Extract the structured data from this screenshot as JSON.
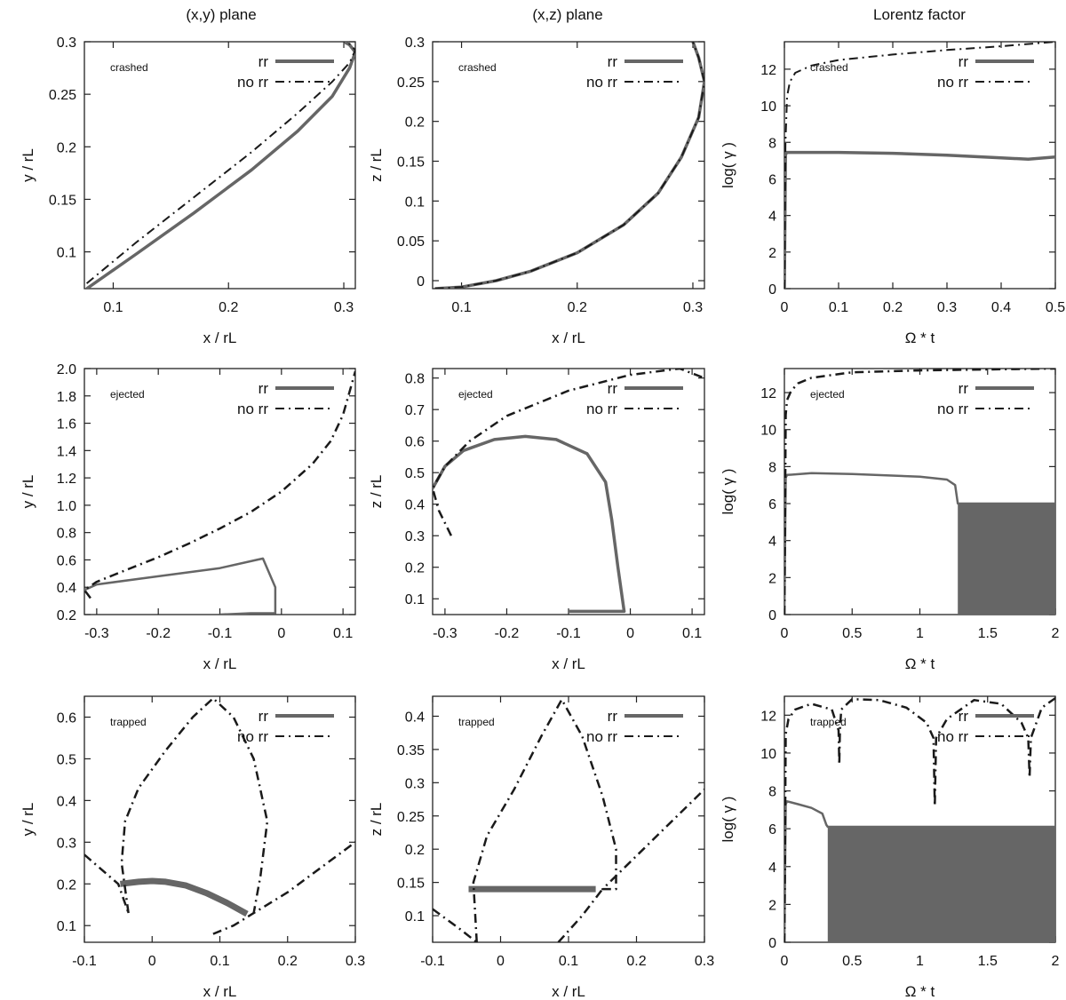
{
  "figure": {
    "column_titles": [
      "(x,y) plane",
      "(x,z) plane",
      "Lorentz factor"
    ],
    "line_color": "#666666",
    "dash_color": "#1a1a1a"
  },
  "chart_data": [
    {
      "type": "line",
      "row": 0,
      "col": 0,
      "title": "(x,y) plane",
      "annotation": "crashed",
      "xlabel": "x / rL",
      "ylabel": "y / rL",
      "xlim": [
        0.075,
        0.31
      ],
      "ylim": [
        0.065,
        0.3
      ],
      "xticks": [
        0.1,
        0.2,
        0.3
      ],
      "xticklabels": [
        "0.1",
        "0.2",
        "0.3"
      ],
      "yticks": [
        0.1,
        0.15,
        0.2,
        0.25,
        0.3
      ],
      "yticklabels": [
        "0.1",
        "0.15",
        "0.2",
        "0.25",
        "0.3"
      ],
      "legend": "top-right",
      "series": [
        {
          "name": "rr",
          "style": "solid",
          "width": 3.5,
          "x": [
            0.077,
            0.12,
            0.17,
            0.22,
            0.26,
            0.29,
            0.305,
            0.31,
            0.305,
            0.3
          ],
          "y": [
            0.065,
            0.098,
            0.137,
            0.178,
            0.215,
            0.248,
            0.275,
            0.29,
            0.297,
            0.3
          ]
        },
        {
          "name": "no rr",
          "style": "dashdot",
          "width": 2,
          "x": [
            0.077,
            0.12,
            0.17,
            0.22,
            0.26,
            0.29,
            0.305,
            0.31,
            0.305,
            0.3
          ],
          "y": [
            0.07,
            0.109,
            0.152,
            0.195,
            0.232,
            0.262,
            0.28,
            0.292,
            0.298,
            0.3
          ]
        }
      ]
    },
    {
      "type": "line",
      "row": 0,
      "col": 1,
      "title": "(x,z) plane",
      "annotation": "crashed",
      "xlabel": "x / rL",
      "ylabel": "z / rL",
      "xlim": [
        0.075,
        0.31
      ],
      "ylim": [
        -0.01,
        0.3
      ],
      "xticks": [
        0.1,
        0.2,
        0.3
      ],
      "xticklabels": [
        "0.1",
        "0.2",
        "0.3"
      ],
      "yticks": [
        0,
        0.05,
        0.1,
        0.15,
        0.2,
        0.25,
        0.3
      ],
      "yticklabels": [
        "0",
        "0.05",
        "0.1",
        "0.15",
        "0.2",
        "0.25",
        "0.3"
      ],
      "legend": "top-right",
      "series": [
        {
          "name": "rr",
          "style": "solid",
          "width": 3.5,
          "x": [
            0.077,
            0.1,
            0.13,
            0.16,
            0.2,
            0.24,
            0.27,
            0.29,
            0.305,
            0.31,
            0.305,
            0.3
          ],
          "y": [
            -0.01,
            -0.008,
            0.0,
            0.012,
            0.035,
            0.07,
            0.11,
            0.155,
            0.205,
            0.25,
            0.28,
            0.3
          ]
        },
        {
          "name": "no rr",
          "style": "dashdot",
          "width": 2,
          "x": [
            0.077,
            0.1,
            0.13,
            0.16,
            0.2,
            0.24,
            0.27,
            0.29,
            0.305,
            0.31,
            0.305,
            0.3
          ],
          "y": [
            -0.01,
            -0.008,
            0.0,
            0.012,
            0.035,
            0.07,
            0.11,
            0.155,
            0.205,
            0.25,
            0.28,
            0.3
          ]
        }
      ]
    },
    {
      "type": "line",
      "row": 0,
      "col": 2,
      "title": "Lorentz factor",
      "annotation": "crashed",
      "xlabel": "Ω * t",
      "ylabel": "log( γ )",
      "xlim": [
        0,
        0.5
      ],
      "ylim": [
        0,
        13.5
      ],
      "xticks": [
        0,
        0.1,
        0.2,
        0.3,
        0.4,
        0.5
      ],
      "xticklabels": [
        "0",
        "0.1",
        "0.2",
        "0.3",
        "0.4",
        "0.5"
      ],
      "yticks": [
        0,
        2,
        4,
        6,
        8,
        10,
        12
      ],
      "yticklabels": [
        "0",
        "2",
        "4",
        "6",
        "8",
        "10",
        "12"
      ],
      "legend": "top-right",
      "series": [
        {
          "name": "rr",
          "style": "solid",
          "width": 3.5,
          "x": [
            0,
            0.002,
            0.004,
            0.1,
            0.2,
            0.3,
            0.4,
            0.45,
            0.5
          ],
          "y": [
            0,
            7.3,
            7.45,
            7.45,
            7.4,
            7.3,
            7.15,
            7.08,
            7.2
          ]
        },
        {
          "name": "no rr",
          "style": "dashdot",
          "width": 2,
          "x": [
            0,
            0.002,
            0.005,
            0.01,
            0.02,
            0.05,
            0.1,
            0.2,
            0.3,
            0.4,
            0.5
          ],
          "y": [
            0,
            8,
            10.5,
            11.3,
            11.8,
            12.2,
            12.5,
            12.8,
            13.05,
            13.25,
            13.5
          ]
        }
      ]
    },
    {
      "type": "line",
      "row": 1,
      "col": 0,
      "annotation": "ejected",
      "xlabel": "x / rL",
      "ylabel": "y / rL",
      "xlim": [
        -0.32,
        0.12
      ],
      "ylim": [
        0.2,
        2.0
      ],
      "xticks": [
        -0.3,
        -0.2,
        -0.1,
        0,
        0.1
      ],
      "xticklabels": [
        "-0.3",
        "-0.2",
        "-0.1",
        "0",
        "0.1"
      ],
      "yticks": [
        0.2,
        0.4,
        0.6,
        0.8,
        1.0,
        1.2,
        1.4,
        1.6,
        1.8,
        2.0
      ],
      "yticklabels": [
        "0.2",
        "0.4",
        "0.6",
        "0.8",
        "1.0",
        "1.2",
        "1.4",
        "1.6",
        "1.8",
        "2.0"
      ],
      "legend": "top-right",
      "series": [
        {
          "name": "rr",
          "style": "solid",
          "width": 2.5,
          "x": [
            -0.32,
            -0.3,
            -0.2,
            -0.1,
            -0.04,
            -0.03,
            -0.01,
            -0.01,
            -0.05,
            -0.1
          ],
          "y": [
            0.38,
            0.42,
            0.48,
            0.54,
            0.6,
            0.61,
            0.4,
            0.21,
            0.21,
            0.2
          ]
        },
        {
          "name": "no rr",
          "style": "dashdot",
          "width": 2.5,
          "x": [
            -0.31,
            -0.32,
            -0.3,
            -0.25,
            -0.2,
            -0.15,
            -0.1,
            -0.05,
            0,
            0.05,
            0.08,
            0.1,
            0.12
          ],
          "y": [
            0.32,
            0.38,
            0.44,
            0.53,
            0.62,
            0.72,
            0.83,
            0.95,
            1.1,
            1.3,
            1.47,
            1.66,
            1.98
          ]
        }
      ]
    },
    {
      "type": "line",
      "row": 1,
      "col": 1,
      "annotation": "ejected",
      "xlabel": "x / rL",
      "ylabel": "z / rL",
      "xlim": [
        -0.32,
        0.12
      ],
      "ylim": [
        0.05,
        0.83
      ],
      "xticks": [
        -0.3,
        -0.2,
        -0.1,
        0,
        0.1
      ],
      "xticklabels": [
        "-0.3",
        "-0.2",
        "-0.1",
        "0",
        "0.1"
      ],
      "yticks": [
        0.1,
        0.2,
        0.3,
        0.4,
        0.5,
        0.6,
        0.7,
        0.8
      ],
      "yticklabels": [
        "0.1",
        "0.2",
        "0.3",
        "0.4",
        "0.5",
        "0.6",
        "0.7",
        "0.8"
      ],
      "legend": "top-right",
      "series": [
        {
          "name": "rr",
          "style": "solid",
          "width": 3.5,
          "x": [
            -0.32,
            -0.3,
            -0.27,
            -0.22,
            -0.17,
            -0.12,
            -0.07,
            -0.04,
            -0.03,
            -0.02,
            -0.01,
            -0.1
          ],
          "y": [
            0.45,
            0.52,
            0.57,
            0.605,
            0.615,
            0.605,
            0.56,
            0.47,
            0.35,
            0.2,
            0.06,
            0.06
          ]
        },
        {
          "name": "no rr",
          "style": "dashdot",
          "width": 2.5,
          "x": [
            -0.29,
            -0.31,
            -0.32,
            -0.3,
            -0.26,
            -0.2,
            -0.1,
            0.0,
            0.08,
            0.12
          ],
          "y": [
            0.3,
            0.38,
            0.45,
            0.52,
            0.6,
            0.68,
            0.76,
            0.81,
            0.83,
            0.8
          ]
        }
      ]
    },
    {
      "type": "line",
      "row": 1,
      "col": 2,
      "annotation": "ejected",
      "xlabel": "Ω * t",
      "ylabel": "log( γ )",
      "xlim": [
        0,
        2
      ],
      "ylim": [
        0,
        13.3
      ],
      "xticks": [
        0,
        0.5,
        1,
        1.5,
        2
      ],
      "xticklabels": [
        "0",
        "0.5",
        "1",
        "1.5",
        "2"
      ],
      "yticks": [
        0,
        2,
        4,
        6,
        8,
        10,
        12
      ],
      "yticklabels": [
        "0",
        "2",
        "4",
        "6",
        "8",
        "10",
        "12"
      ],
      "legend": "top-right",
      "series": [
        {
          "name": "rr",
          "style": "solid",
          "width": 2.5,
          "x": [
            0,
            0.01,
            0.02,
            0.2,
            0.5,
            1.0,
            1.2,
            1.26,
            1.28,
            1.3,
            2.0
          ],
          "y": [
            0,
            7.4,
            7.55,
            7.65,
            7.6,
            7.45,
            7.3,
            7.0,
            6.0,
            6.0,
            6.0
          ]
        },
        {
          "name": "no rr",
          "style": "dashdot",
          "width": 2.5,
          "x": [
            0,
            0.01,
            0.02,
            0.05,
            0.1,
            0.2,
            0.5,
            1.0,
            1.5,
            2.0
          ],
          "y": [
            0,
            10.8,
            11.6,
            12.1,
            12.5,
            12.8,
            13.1,
            13.2,
            13.25,
            13.3
          ]
        }
      ],
      "oscillation_band": {
        "x": [
          1.28,
          2.0
        ],
        "y": [
          0,
          6.0
        ]
      }
    },
    {
      "type": "line",
      "row": 2,
      "col": 0,
      "annotation": "trapped",
      "xlabel": "x / rL",
      "ylabel": "y / rL",
      "xlim": [
        -0.1,
        0.3
      ],
      "ylim": [
        0.06,
        0.65
      ],
      "xticks": [
        -0.1,
        0,
        0.1,
        0.2,
        0.3
      ],
      "xticklabels": [
        "-0.1",
        "0",
        "0.1",
        "0.2",
        "0.3"
      ],
      "yticks": [
        0.1,
        0.2,
        0.3,
        0.4,
        0.5,
        0.6
      ],
      "yticklabels": [
        "0.1",
        "0.2",
        "0.3",
        "0.4",
        "0.5",
        "0.6"
      ],
      "legend": "top-right",
      "series": [
        {
          "name": "rr",
          "style": "solid",
          "width": 7,
          "x": [
            -0.047,
            -0.02,
            0.0,
            0.02,
            0.05,
            0.08,
            0.11,
            0.14
          ],
          "y": [
            0.2,
            0.205,
            0.207,
            0.205,
            0.196,
            0.178,
            0.155,
            0.128
          ]
        },
        {
          "name": "no rr",
          "style": "dashdot",
          "width": 2.5,
          "x": [
            -0.035,
            -0.045,
            -0.04,
            -0.02,
            0.02,
            0.06,
            0.09,
            0.12,
            0.15,
            0.17,
            0.16,
            0.15,
            0.2,
            0.25,
            0.3
          ],
          "y": [
            0.13,
            0.25,
            0.35,
            0.43,
            0.52,
            0.6,
            0.645,
            0.6,
            0.5,
            0.35,
            0.22,
            0.13,
            0.18,
            0.24,
            0.3
          ]
        },
        {
          "name": "no rr",
          "style": "dashdot",
          "width": 2.5,
          "x": [
            -0.1,
            -0.05,
            -0.035
          ],
          "y": [
            0.27,
            0.2,
            0.13
          ]
        },
        {
          "name": "no rr",
          "style": "dashdot",
          "width": 2.5,
          "x": [
            0.09,
            0.12,
            0.15
          ],
          "y": [
            0.08,
            0.1,
            0.13
          ]
        }
      ]
    },
    {
      "type": "line",
      "row": 2,
      "col": 1,
      "annotation": "trapped",
      "xlabel": "x / rL",
      "ylabel": "z / rL",
      "xlim": [
        -0.1,
        0.3
      ],
      "ylim": [
        0.06,
        0.43
      ],
      "xticks": [
        -0.1,
        0,
        0.1,
        0.2,
        0.3
      ],
      "xticklabels": [
        "-0.1",
        "0",
        "0.1",
        "0.2",
        "0.3"
      ],
      "yticks": [
        0.1,
        0.15,
        0.2,
        0.25,
        0.3,
        0.35,
        0.4
      ],
      "yticklabels": [
        "0.1",
        "0.15",
        "0.2",
        "0.25",
        "0.3",
        "0.35",
        "0.4"
      ],
      "legend": "top-right",
      "series": [
        {
          "name": "rr",
          "style": "solid",
          "width": 7,
          "x": [
            -0.047,
            0.0,
            0.05,
            0.1,
            0.14
          ],
          "y": [
            0.14,
            0.14,
            0.14,
            0.14,
            0.14
          ]
        },
        {
          "name": "no rr",
          "style": "dashdot",
          "width": 2.5,
          "x": [
            -0.035,
            -0.04,
            -0.02,
            0.02,
            0.06,
            0.09,
            0.12,
            0.15,
            0.17,
            0.17,
            0.15,
            0.2,
            0.25,
            0.3
          ],
          "y": [
            0.06,
            0.15,
            0.22,
            0.29,
            0.37,
            0.425,
            0.37,
            0.28,
            0.2,
            0.14,
            0.14,
            0.19,
            0.24,
            0.29
          ]
        },
        {
          "name": "no rr",
          "style": "dashdot",
          "width": 2.5,
          "x": [
            -0.1,
            -0.06,
            -0.035
          ],
          "y": [
            0.11,
            0.08,
            0.06
          ]
        },
        {
          "name": "no rr",
          "style": "dashdot",
          "width": 2.5,
          "x": [
            0.085,
            0.12,
            0.15
          ],
          "y": [
            0.06,
            0.1,
            0.14
          ]
        }
      ]
    },
    {
      "type": "line",
      "row": 2,
      "col": 2,
      "annotation": "trapped",
      "xlabel": "Ω * t",
      "ylabel": "log( γ )",
      "xlim": [
        0,
        2
      ],
      "ylim": [
        0,
        13.0
      ],
      "xticks": [
        0,
        0.5,
        1,
        1.5,
        2
      ],
      "xticklabels": [
        "0",
        "0.5",
        "1",
        "1.5",
        "2"
      ],
      "yticks": [
        0,
        2,
        4,
        6,
        8,
        10,
        12
      ],
      "yticklabels": [
        "0",
        "2",
        "4",
        "6",
        "8",
        "10",
        "12"
      ],
      "legend": "top-right",
      "series": [
        {
          "name": "rr",
          "style": "solid",
          "width": 2.5,
          "x": [
            0,
            0.01,
            0.02,
            0.1,
            0.2,
            0.28,
            0.31,
            0.32,
            2.0
          ],
          "y": [
            0,
            7.3,
            7.45,
            7.3,
            7.1,
            6.8,
            6.2,
            6.1,
            6.1
          ]
        },
        {
          "name": "no rr",
          "style": "dashdot",
          "width": 2.5,
          "x": [
            0,
            0.01,
            0.03,
            0.08,
            0.2,
            0.35,
            0.4,
            0.405,
            0.41,
            0.42,
            0.5,
            0.7,
            0.9,
            1.05,
            1.1,
            1.11,
            1.12,
            1.2,
            1.4,
            1.6,
            1.75,
            1.8,
            1.81,
            1.82,
            1.9,
            2.0
          ],
          "y": [
            0,
            11.0,
            11.8,
            12.3,
            12.6,
            12.3,
            11.2,
            9.4,
            11.2,
            12.3,
            12.85,
            12.8,
            12.4,
            11.6,
            10.8,
            7.2,
            10.8,
            11.8,
            12.8,
            12.6,
            11.6,
            10.8,
            8.7,
            10.8,
            12.4,
            12.9
          ]
        }
      ],
      "oscillation_band": {
        "x": [
          0.32,
          2.0
        ],
        "y": [
          0,
          6.1
        ]
      }
    }
  ]
}
